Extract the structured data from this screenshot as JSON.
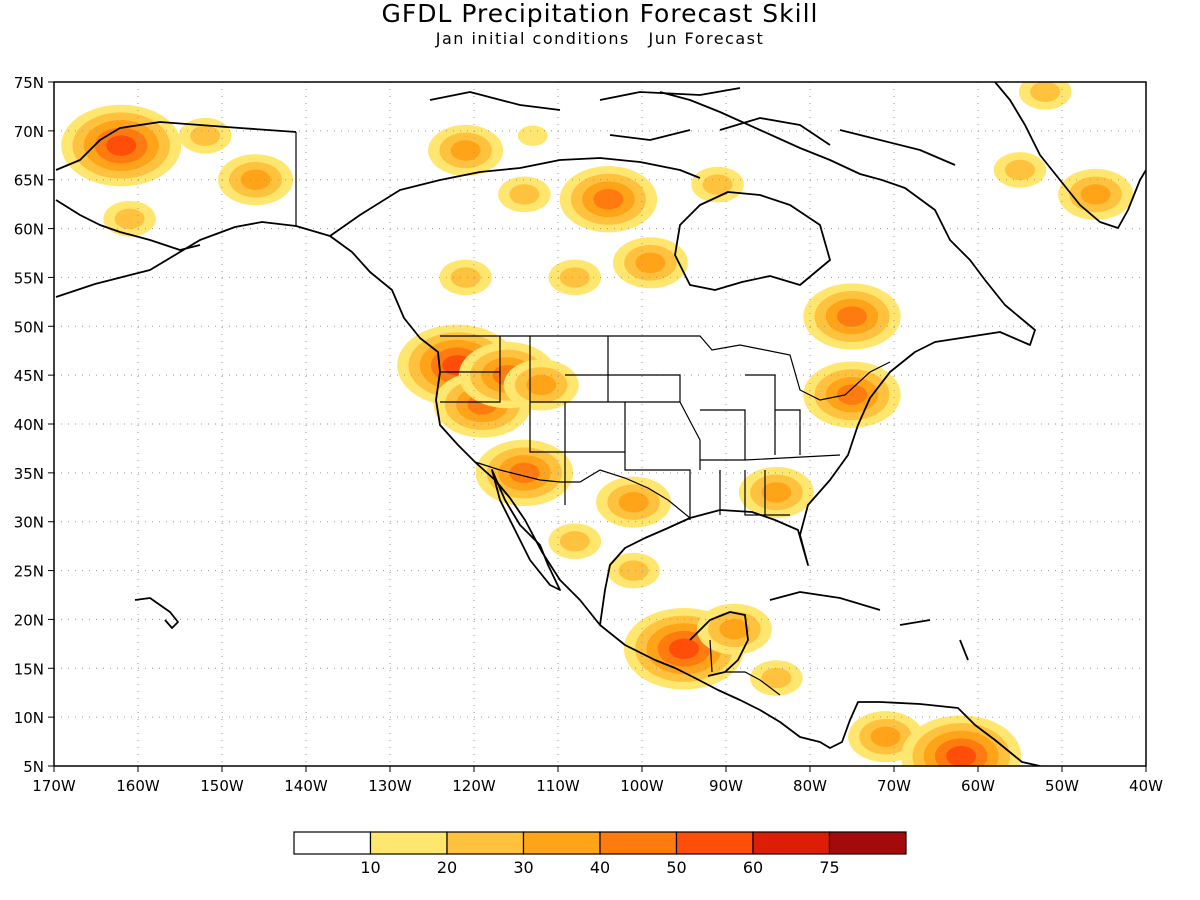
{
  "map": {
    "title": "GFDL Precipitation Forecast Skill",
    "subtitle_left": "Jan initial conditions",
    "subtitle_right": "Jun Forecast",
    "lon_range": [
      -170,
      -40
    ],
    "lat_range": [
      5,
      75
    ],
    "lat_ticks": [
      "75N",
      "70N",
      "65N",
      "60N",
      "55N",
      "50N",
      "45N",
      "40N",
      "35N",
      "30N",
      "25N",
      "20N",
      "15N",
      "10N",
      "5N"
    ],
    "lon_ticks": [
      "170W",
      "160W",
      "150W",
      "140W",
      "130W",
      "120W",
      "110W",
      "100W",
      "90W",
      "80W",
      "70W",
      "60W",
      "50W",
      "40W"
    ],
    "grid": "dotted",
    "field": "forecast skill"
  },
  "colorbar": {
    "labels": [
      "10",
      "20",
      "30",
      "40",
      "50",
      "60",
      "75"
    ],
    "colors": [
      "#ffffff",
      "#ffe66e",
      "#ffc23f",
      "#ffa319",
      "#ff7a0f",
      "#ff4e0a",
      "#dd1e07",
      "#a50a0a"
    ]
  },
  "chart_data": {
    "type": "heatmap",
    "title": "GFDL Precipitation Forecast Skill",
    "subtitle": "Jan initial conditions  Jun Forecast",
    "x_range": [
      -170,
      -40
    ],
    "y_range": [
      5,
      75
    ],
    "levels": [
      10,
      20,
      30,
      40,
      50,
      60,
      75
    ],
    "regions": [
      {
        "lon": -162,
        "lat": 68.5,
        "level": 50
      },
      {
        "lon": -152,
        "lat": 69.5,
        "level": 20
      },
      {
        "lon": -146,
        "lat": 65,
        "level": 30
      },
      {
        "lon": -161,
        "lat": 61,
        "level": 20
      },
      {
        "lon": -121,
        "lat": 68,
        "level": 30
      },
      {
        "lon": -113,
        "lat": 69.5,
        "level": 10
      },
      {
        "lon": -104,
        "lat": 63,
        "level": 40
      },
      {
        "lon": -91,
        "lat": 64.5,
        "level": 20
      },
      {
        "lon": -114,
        "lat": 63.5,
        "level": 20
      },
      {
        "lon": -99,
        "lat": 56.5,
        "level": 30
      },
      {
        "lon": -108,
        "lat": 55,
        "level": 20
      },
      {
        "lon": -121,
        "lat": 55,
        "level": 20
      },
      {
        "lon": -122,
        "lat": 46,
        "level": 50
      },
      {
        "lon": -119,
        "lat": 42,
        "level": 40
      },
      {
        "lon": -116,
        "lat": 45,
        "level": 40
      },
      {
        "lon": -112,
        "lat": 44,
        "level": 30
      },
      {
        "lon": -114,
        "lat": 35,
        "level": 40
      },
      {
        "lon": -101,
        "lat": 32,
        "level": 30
      },
      {
        "lon": -108,
        "lat": 28,
        "level": 20
      },
      {
        "lon": -101,
        "lat": 25,
        "level": 20
      },
      {
        "lon": -84,
        "lat": 33,
        "level": 30
      },
      {
        "lon": -75,
        "lat": 43,
        "level": 40
      },
      {
        "lon": -75,
        "lat": 51,
        "level": 40
      },
      {
        "lon": -95,
        "lat": 17,
        "level": 50
      },
      {
        "lon": -89,
        "lat": 19,
        "level": 30
      },
      {
        "lon": -84,
        "lat": 14,
        "level": 20
      },
      {
        "lon": -71,
        "lat": 8,
        "level": 30
      },
      {
        "lon": -62,
        "lat": 6,
        "level": 50
      },
      {
        "lon": -46,
        "lat": 63.5,
        "level": 30
      },
      {
        "lon": -55,
        "lat": 66,
        "level": 20
      },
      {
        "lon": -52,
        "lat": 74,
        "level": 20
      }
    ]
  }
}
